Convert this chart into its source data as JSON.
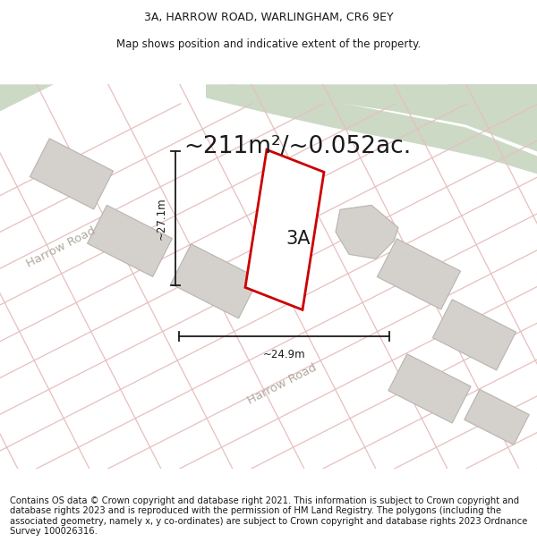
{
  "title_line1": "3A, HARROW ROAD, WARLINGHAM, CR6 9EY",
  "title_line2": "Map shows position and indicative extent of the property.",
  "area_text": "~211m²/~0.052ac.",
  "label_3a": "3A",
  "dim_height": "~27.1m",
  "dim_width": "~24.9m",
  "harrow_road_upper": "Harrow Road",
  "harrow_road_lower": "Harrow Road",
  "footer_text": "Contains OS data © Crown copyright and database right 2021. This information is subject to Crown copyright and database rights 2023 and is reproduced with the permission of HM Land Registry. The polygons (including the associated geometry, namely x, y co-ordinates) are subject to Crown copyright and database rights 2023 Ordnance Survey 100026316.",
  "bg_color": "#ffffff",
  "map_bg": "#f2f0ee",
  "green_area_color": "#ccd9c5",
  "road_line_color": "#e8bfbf",
  "building_fill": "#d4d0cc",
  "building_edge": "#b8b4b0",
  "plot_outline_color": "#cc0000",
  "dim_line_color": "#1a1a1a",
  "text_color": "#1a1a1a",
  "road_text_color": "#b0a8a0",
  "title_fontsize": 9,
  "footer_fontsize": 7.2,
  "area_fontsize": 19,
  "label_fontsize": 15,
  "dim_fontsize": 8.5,
  "road_fontsize": 9.5
}
